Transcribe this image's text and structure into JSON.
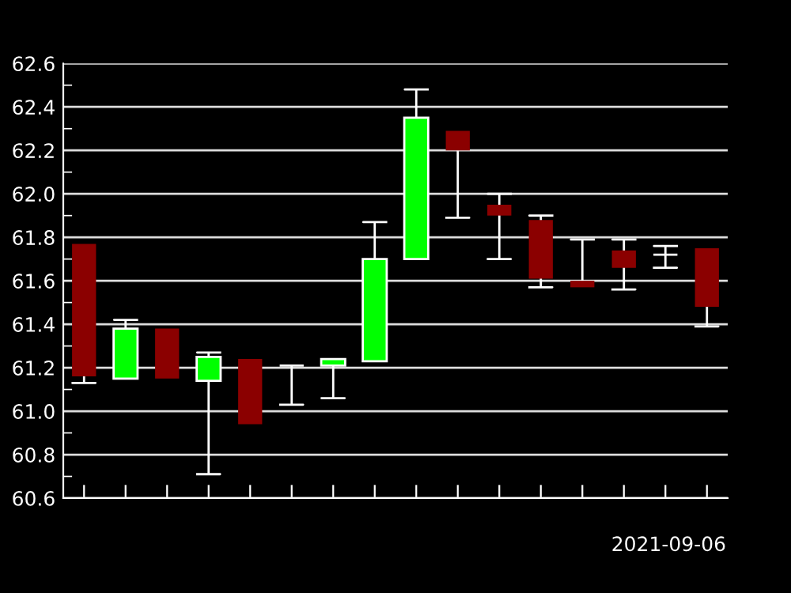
{
  "chart_data": {
    "type": "candlestick",
    "categories": [
      null,
      null,
      null,
      null,
      null,
      null,
      null,
      null,
      null,
      null,
      null,
      null,
      null,
      null,
      null,
      null
    ],
    "ohlc": [
      [
        61.77,
        61.77,
        61.13,
        61.16
      ],
      [
        61.15,
        61.42,
        61.15,
        61.38
      ],
      [
        61.38,
        61.38,
        61.15,
        61.15
      ],
      [
        61.14,
        61.27,
        60.71,
        61.25
      ],
      [
        61.24,
        61.24,
        60.94,
        60.94
      ],
      [
        61.21,
        61.21,
        61.03,
        61.21
      ],
      [
        61.21,
        61.24,
        61.06,
        61.24
      ],
      [
        61.23,
        61.87,
        61.23,
        61.7
      ],
      [
        61.7,
        62.48,
        61.7,
        62.35
      ],
      [
        62.29,
        62.29,
        61.89,
        62.2
      ],
      [
        61.95,
        62.0,
        61.7,
        61.9
      ],
      [
        61.88,
        61.9,
        61.57,
        61.61
      ],
      [
        61.6,
        61.79,
        61.57,
        61.57
      ],
      [
        61.74,
        61.79,
        61.56,
        61.66
      ],
      [
        61.72,
        61.76,
        61.66,
        61.72
      ],
      [
        61.75,
        61.75,
        61.39,
        61.48
      ]
    ],
    "colors": [
      "#8b0000",
      "#00ff00",
      "#8b0000",
      "#00ff00",
      "#8b0000",
      "#ffffff",
      "#00ff00",
      "#00ff00",
      "#00ff00",
      "#8b0000",
      "#8b0000",
      "#8b0000",
      "#8b0000",
      "#8b0000",
      "#ffffff",
      "#8b0000"
    ],
    "ylim": [
      60.6,
      62.6
    ],
    "yticks": [
      60.6,
      {
        "value": 60.7,
        "label": null
      },
      60.8,
      {
        "value": 60.9,
        "label": null
      },
      {
        "value": 61.0,
        "label": "61.0"
      },
      {
        "value": 61.1,
        "label": null
      },
      61.2,
      {
        "value": 61.3,
        "label": null
      },
      61.4,
      {
        "value": 61.5,
        "label": null
      },
      61.6,
      {
        "value": 61.7,
        "label": null
      },
      61.8,
      {
        "value": 61.9,
        "label": null
      },
      {
        "value": 62.0,
        "label": "62.0"
      },
      {
        "value": 62.1,
        "label": null
      },
      62.2,
      {
        "value": 62.3,
        "label": null
      },
      62.4,
      {
        "value": 62.5,
        "label": null
      },
      62.6
    ],
    "grid": "y",
    "annotations": [
      "2021-09-06"
    ]
  }
}
